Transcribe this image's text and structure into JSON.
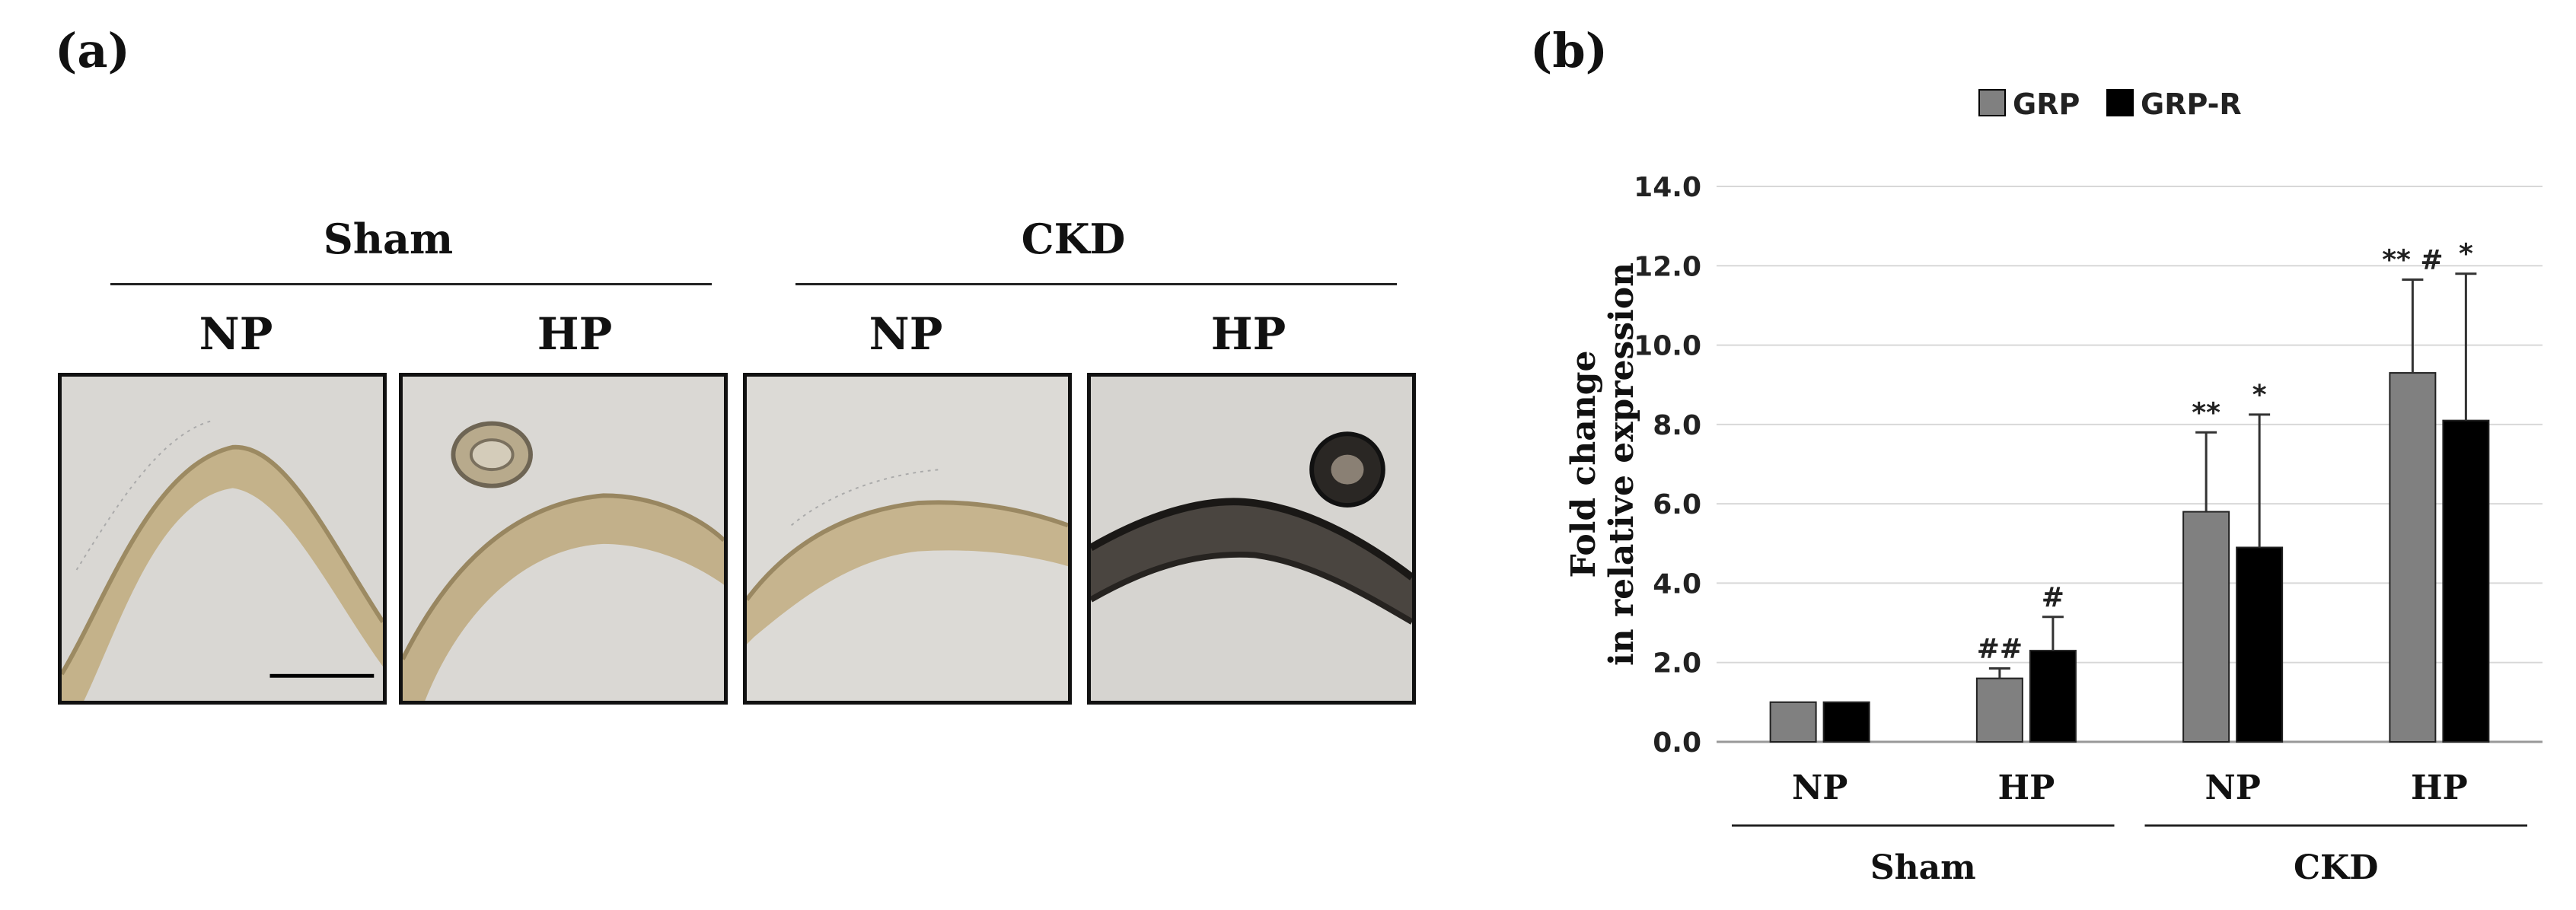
{
  "panel_a": {
    "label": "(a)",
    "groups": [
      {
        "name": "Sham",
        "subgroups": [
          "NP",
          "HP"
        ]
      },
      {
        "name": "CKD",
        "subgroups": [
          "NP",
          "HP"
        ]
      }
    ],
    "images": [
      {
        "group": "Sham",
        "subgroup": "NP",
        "stain": "light"
      },
      {
        "group": "Sham",
        "subgroup": "HP",
        "stain": "light"
      },
      {
        "group": "CKD",
        "subgroup": "NP",
        "stain": "light"
      },
      {
        "group": "CKD",
        "subgroup": "HP",
        "stain": "dark"
      }
    ]
  },
  "panel_b": {
    "label": "(b)"
  },
  "chart_data": {
    "type": "bar",
    "title": "",
    "ylabel": "Fold change in relative expression",
    "ylabel_lines": [
      "Fold change",
      "in relative expression"
    ],
    "xlabel": "",
    "ylim": [
      0,
      14
    ],
    "yticks": [
      "0.0",
      "2.0",
      "4.0",
      "6.0",
      "8.0",
      "10.0",
      "12.0",
      "14.0"
    ],
    "grid": true,
    "legend_position": "top",
    "categories": [
      "NP",
      "HP",
      "NP",
      "HP"
    ],
    "category_groups": [
      {
        "name": "Sham",
        "categories": [
          0,
          1
        ]
      },
      {
        "name": "CKD",
        "categories": [
          2,
          3
        ]
      }
    ],
    "series": [
      {
        "name": "GRP",
        "color": "#808080",
        "values": [
          1.0,
          1.6,
          5.8,
          9.3
        ],
        "errors": [
          0.0,
          0.25,
          2.0,
          2.35
        ],
        "annotations": [
          "",
          "##",
          "**",
          "** #"
        ]
      },
      {
        "name": "GRP-R",
        "color": "#000000",
        "values": [
          1.0,
          2.3,
          4.9,
          8.1
        ],
        "errors": [
          0.0,
          0.85,
          3.35,
          3.7
        ],
        "annotations": [
          "",
          "#",
          "*",
          "*"
        ]
      }
    ]
  }
}
